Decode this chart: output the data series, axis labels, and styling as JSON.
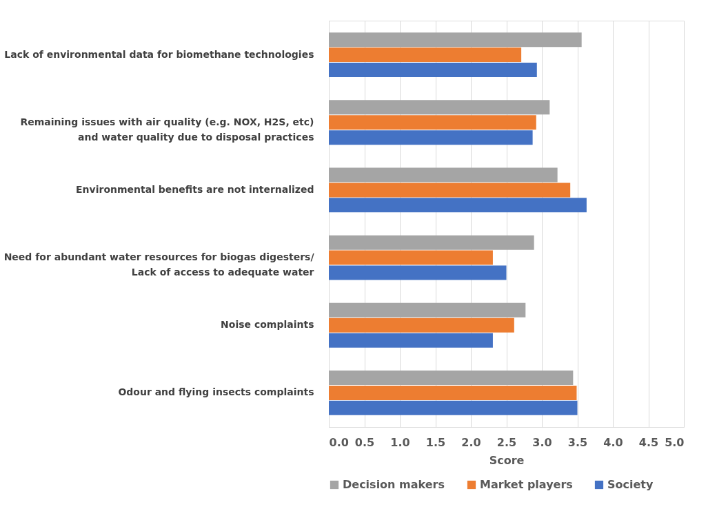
{
  "chart_data": {
    "type": "bar",
    "orientation": "horizontal",
    "xlabel": "Score",
    "categories": [
      "Lack of environmental data for biomethane technologies",
      "Remaining issues with air quality (e.g. NOX, H2S, etc) and water quality due to  disposal practices",
      "Environmental benefits are not internalized",
      "Need for abundant water resources for biogas digesters/ Lack of access to adequate water",
      "Noise complaints",
      "Odour and flying insects complaints"
    ],
    "series": [
      {
        "name": "Decision makers",
        "color": "#a5a5a5",
        "values": [
          3.56,
          3.11,
          3.22,
          2.89,
          2.77,
          3.44
        ]
      },
      {
        "name": "Market players",
        "color": "#ed7d31",
        "values": [
          2.71,
          2.92,
          3.4,
          2.31,
          2.61,
          3.49
        ]
      },
      {
        "name": "Society",
        "color": "#4472c4",
        "values": [
          2.93,
          2.87,
          3.63,
          2.5,
          2.31,
          3.5
        ]
      }
    ],
    "xlim": [
      0,
      5
    ],
    "xticks": [
      {
        "value": 0,
        "label": "0.0"
      },
      0.5,
      {
        "value": 1,
        "label": "1.0"
      },
      1.5,
      {
        "value": 2,
        "label": "2.0"
      },
      2.5,
      {
        "value": 3,
        "label": "3.0"
      },
      3.5,
      {
        "value": 4,
        "label": "4.0"
      },
      4.5,
      {
        "value": 5,
        "label": "5.0"
      }
    ],
    "grid": "x",
    "legend": "bottom"
  }
}
